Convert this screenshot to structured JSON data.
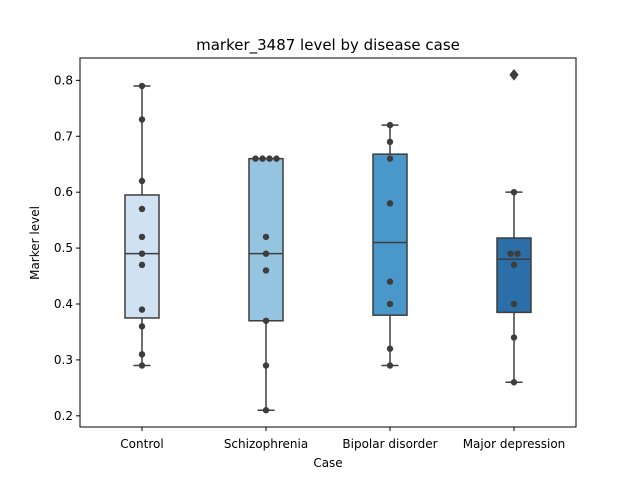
{
  "chart_data": {
    "type": "box",
    "title": "marker_3487 level by disease case",
    "xlabel": "Case",
    "ylabel": "Marker level",
    "ylim": [
      0.18,
      0.84
    ],
    "yticks": [
      0.2,
      0.3,
      0.4,
      0.5,
      0.6,
      0.7,
      0.8
    ],
    "ytick_labels": [
      "0.2",
      "0.3",
      "0.4",
      "0.5",
      "0.6",
      "0.7",
      "0.8"
    ],
    "categories": [
      "Control",
      "Schizophrenia",
      "Bipolar disorder",
      "Major depression"
    ],
    "colors": [
      "#d0e1f2",
      "#94c4df",
      "#4a98c9",
      "#2b6ea8"
    ],
    "grid": false,
    "boxes": [
      {
        "name": "Control",
        "q1": 0.375,
        "median": 0.49,
        "q3": 0.595,
        "whisker_low": 0.29,
        "whisker_high": 0.79,
        "outliers": [],
        "points": [
          0.79,
          0.73,
          0.62,
          0.57,
          0.52,
          0.49,
          0.47,
          0.39,
          0.36,
          0.31,
          0.29
        ]
      },
      {
        "name": "Schizophrenia",
        "q1": 0.37,
        "median": 0.49,
        "q3": 0.66,
        "whisker_low": 0.21,
        "whisker_high": 0.66,
        "outliers": [],
        "points": [
          0.66,
          0.66,
          0.66,
          0.66,
          0.52,
          0.49,
          0.46,
          0.37,
          0.29,
          0.21
        ]
      },
      {
        "name": "Bipolar disorder",
        "q1": 0.38,
        "median": 0.51,
        "q3": 0.668,
        "whisker_low": 0.29,
        "whisker_high": 0.72,
        "outliers": [],
        "points": [
          0.72,
          0.69,
          0.66,
          0.58,
          0.44,
          0.4,
          0.32,
          0.29
        ]
      },
      {
        "name": "Major depression",
        "q1": 0.385,
        "median": 0.48,
        "q3": 0.518,
        "whisker_low": 0.26,
        "whisker_high": 0.6,
        "outliers": [
          0.81
        ],
        "points": [
          0.81,
          0.6,
          0.49,
          0.49,
          0.47,
          0.4,
          0.34,
          0.26
        ]
      }
    ]
  }
}
